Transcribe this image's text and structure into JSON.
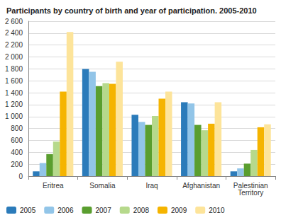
{
  "chart_data": {
    "type": "bar",
    "title": "Participants by country of birth and year of participation. 2005-2010",
    "categories": [
      "Eritrea",
      "Somalia",
      "Iraq",
      "Afghanistan",
      "Palestinian Territory"
    ],
    "series": [
      {
        "name": "2005",
        "color": "#2b7bba",
        "values": [
          80,
          1800,
          1030,
          1240,
          80
        ]
      },
      {
        "name": "2006",
        "color": "#92c5e8",
        "values": [
          220,
          1750,
          910,
          1220,
          130
        ]
      },
      {
        "name": "2007",
        "color": "#5a9e2f",
        "values": [
          370,
          1510,
          860,
          860,
          210
        ]
      },
      {
        "name": "2008",
        "color": "#b6d98c",
        "values": [
          580,
          1560,
          1010,
          770,
          440
        ]
      },
      {
        "name": "2009",
        "color": "#f5b400",
        "values": [
          1420,
          1550,
          1300,
          880,
          820
        ]
      },
      {
        "name": "2010",
        "color": "#fde49a",
        "values": [
          2420,
          1920,
          1420,
          1240,
          870
        ]
      }
    ],
    "ylim": [
      0,
      2600
    ],
    "yticks": [
      0,
      200,
      400,
      600,
      800,
      {
        "value": 1000,
        "label": "1 000"
      },
      {
        "value": 1200,
        "label": "1 200"
      },
      {
        "value": 1400,
        "label": "1 400"
      },
      {
        "value": 1600,
        "label": "1 600"
      },
      {
        "value": 1800,
        "label": "1 800"
      },
      {
        "value": 2000,
        "label": "2 000"
      },
      {
        "value": 2200,
        "label": "2 200"
      },
      {
        "value": 2400,
        "label": "2 400"
      },
      {
        "value": 2600,
        "label": "2 600"
      }
    ],
    "grid": true,
    "legend": "bottom"
  }
}
